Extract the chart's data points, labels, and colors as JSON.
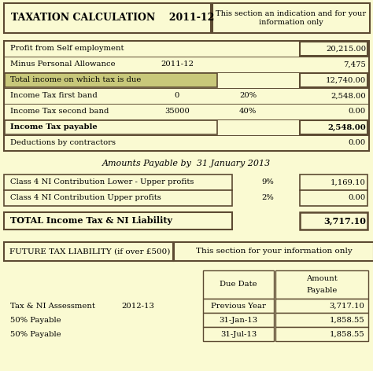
{
  "bg_color": "#FAFAD2",
  "border_color": "#5C4A32",
  "title1": "TAXATION CALCULATION",
  "title_year": "2011-12",
  "title_note": "This section an indication and for your\ninformation only",
  "rows": [
    {
      "label": "Profit from Self employment",
      "col2": "",
      "col3": "",
      "value": "20,215.00",
      "bold": false,
      "box_label": false,
      "box_value": true,
      "shaded": false
    },
    {
      "label": "Minus Personal Allowance",
      "col2": "2011-12",
      "col3": "",
      "value": "7,475",
      "bold": false,
      "box_label": false,
      "box_value": false,
      "shaded": false
    },
    {
      "label": "Total income on which tax is due",
      "col2": "",
      "col3": "",
      "value": "12,740.00",
      "bold": false,
      "box_label": true,
      "box_value": true,
      "shaded": true
    },
    {
      "label": "Income Tax first band",
      "col2": "0",
      "col3": "20%",
      "value": "2,548.00",
      "bold": false,
      "box_label": false,
      "box_value": false,
      "shaded": false
    },
    {
      "label": "Income Tax second band",
      "col2": "35000",
      "col3": "40%",
      "value": "0.00",
      "bold": false,
      "box_label": false,
      "box_value": false,
      "shaded": false
    },
    {
      "label": "Income Tax payable",
      "col2": "",
      "col3": "",
      "value": "2,548.00",
      "bold": true,
      "box_label": true,
      "box_value": true,
      "shaded": false
    },
    {
      "label": "Deductions by contractors",
      "col2": "",
      "col3": "",
      "value": "0.00",
      "bold": false,
      "box_label": false,
      "box_value": false,
      "shaded": false
    }
  ],
  "ni_rows": [
    {
      "label": "Class 4 NI Contribution Lower - Upper profits",
      "pct": "9%",
      "value": "1,169.10"
    },
    {
      "label": "Class 4 NI Contribution Upper profits",
      "pct": "2%",
      "value": "0.00"
    }
  ],
  "total_label": "TOTAL Income Tax & NI Liability",
  "total_value": "3,717.10",
  "amounts_payable_text": "Amounts Payable by  31 January 2013",
  "future_label": "FUTURE TAX LIABILITY (if over £500)",
  "future_note": "This section for your information only",
  "future_rows": [
    {
      "desc": "Tax & NI Assessment",
      "year": "2012-13",
      "due": "Previous Year",
      "amount": "3,717.10"
    },
    {
      "desc": "50% Payable",
      "year": "",
      "due": "31-Jan-13",
      "amount": "1,858.55"
    },
    {
      "desc": "50% Payable",
      "year": "",
      "due": "31-Jul-13",
      "amount": "1,858.55"
    }
  ]
}
